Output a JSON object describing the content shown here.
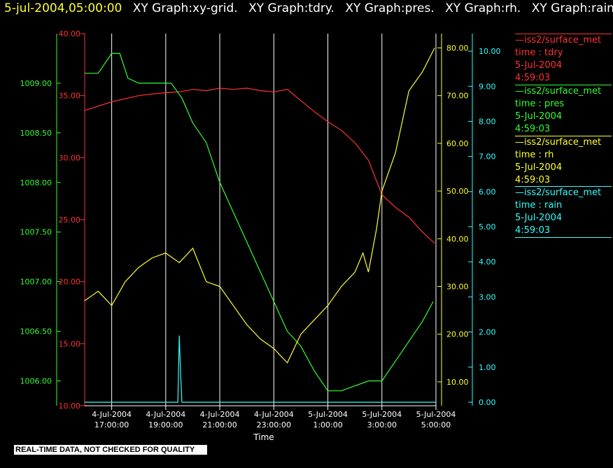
{
  "header": {
    "timestamp": "5-jul-2004,05:00:00",
    "graphs": [
      "XY Graph:xy-grid.",
      "XY Graph:tdry.",
      "XY Graph:pres.",
      "XY Graph:rh.",
      "XY Graph:rain."
    ]
  },
  "footer": {
    "quality_notice": "REAL-TIME DATA, NOT CHECKED FOR QUALITY"
  },
  "colors": {
    "tdry": "#ff3333",
    "pres": "#33ff33",
    "rh": "#ffff33",
    "rain": "#33ffff",
    "grid": "#ffffff",
    "background": "#000000"
  },
  "legend": [
    {
      "station": "iss2/surface_met",
      "variable": "time : tdry",
      "date": "5-Jul-2004",
      "time": "4:59:03",
      "color": "#ff3333"
    },
    {
      "station": "iss2/surface_met",
      "variable": "time : pres",
      "date": "5-Jul-2004",
      "time": "4:59:03",
      "color": "#33ff33"
    },
    {
      "station": "iss2/surface_met",
      "variable": "time : rh",
      "date": "5-Jul-2004",
      "time": "4:59:03",
      "color": "#ffff33"
    },
    {
      "station": "iss2/surface_met",
      "variable": "time : rain",
      "date": "5-Jul-2004",
      "time": "4:59:03",
      "color": "#33ffff"
    }
  ],
  "chart_data": {
    "type": "line",
    "xlabel": "Time",
    "x_range_hours": [
      16.0,
      29.0
    ],
    "x_ticks": [
      {
        "hour": 17,
        "date": "4-Jul-2004",
        "time": "17:00:00"
      },
      {
        "hour": 19,
        "date": "4-Jul-2004",
        "time": "19:00:00"
      },
      {
        "hour": 21,
        "date": "4-Jul-2004",
        "time": "21:00:00"
      },
      {
        "hour": 23,
        "date": "4-Jul-2004",
        "time": "23:00:00"
      },
      {
        "hour": 25,
        "date": "5-Jul-2004",
        "time": "1:00:00"
      },
      {
        "hour": 27,
        "date": "5-Jul-2004",
        "time": "3:00:00"
      },
      {
        "hour": 29,
        "date": "5-Jul-2004",
        "time": "5:00:00"
      }
    ],
    "axes": {
      "pres": {
        "range": [
          1005.75,
          1009.5
        ],
        "ticks": [
          "1006.00",
          "1006.50",
          "1007.00",
          "1007.50",
          "1008.00",
          "1008.50",
          "1009.00"
        ],
        "tick_values": [
          1006.0,
          1006.5,
          1007.0,
          1007.5,
          1008.0,
          1008.5,
          1009.0
        ]
      },
      "tdry": {
        "range": [
          10.0,
          40.0
        ],
        "ticks": [
          "10.00",
          "15.00",
          "20.00",
          "25.00",
          "30.00",
          "35.00",
          "40.00"
        ],
        "tick_values": [
          10,
          15,
          20,
          25,
          30,
          35,
          40
        ]
      },
      "rh": {
        "range": [
          5.0,
          83.0
        ],
        "ticks": [
          "10.00",
          "20.00",
          "30.00",
          "40.00",
          "50.00",
          "60.00",
          "70.00",
          "80.00"
        ],
        "tick_values": [
          10,
          20,
          30,
          40,
          50,
          60,
          70,
          80
        ]
      },
      "rain": {
        "range": [
          -0.1,
          10.5
        ],
        "ticks": [
          "0.00",
          "1.00",
          "2.00",
          "3.00",
          "4.00",
          "5.00",
          "6.00",
          "7.00",
          "8.00",
          "9.00",
          "10.00"
        ],
        "tick_values": [
          0,
          1,
          2,
          3,
          4,
          5,
          6,
          7,
          8,
          9,
          10
        ]
      }
    },
    "series": [
      {
        "key": "tdry",
        "x": [
          16.0,
          17.0,
          18.0,
          18.8,
          19.5,
          20.0,
          20.5,
          21.0,
          21.5,
          22.0,
          22.5,
          23.0,
          23.5,
          24.0,
          24.5,
          25.0,
          25.5,
          26.0,
          26.5,
          27.0,
          27.5,
          28.0,
          28.5,
          28.95
        ],
        "y": [
          33.8,
          34.5,
          35.0,
          35.2,
          35.3,
          35.5,
          35.4,
          35.6,
          35.5,
          35.6,
          35.4,
          35.3,
          35.5,
          34.6,
          33.7,
          32.9,
          32.2,
          31.2,
          29.8,
          27.0,
          26.0,
          25.2,
          24.0,
          23.1
        ]
      },
      {
        "key": "pres",
        "x": [
          16.0,
          16.5,
          17.0,
          17.3,
          17.6,
          18.0,
          18.6,
          19.2,
          19.6,
          20.0,
          20.5,
          21.0,
          21.5,
          22.0,
          22.5,
          23.0,
          23.5,
          24.0,
          24.5,
          25.0,
          25.5,
          26.0,
          26.5,
          27.0,
          27.5,
          28.0,
          28.5,
          28.9
        ],
        "y": [
          1009.1,
          1009.1,
          1009.3,
          1009.3,
          1009.05,
          1009.0,
          1009.0,
          1009.0,
          1008.85,
          1008.6,
          1008.4,
          1008.0,
          1007.7,
          1007.4,
          1007.1,
          1006.8,
          1006.5,
          1006.35,
          1006.1,
          1005.9,
          1005.9,
          1005.95,
          1006.0,
          1006.0,
          1006.2,
          1006.4,
          1006.6,
          1006.8
        ]
      },
      {
        "key": "rh",
        "x": [
          16.0,
          16.5,
          17.0,
          17.5,
          18.0,
          18.5,
          19.0,
          19.5,
          20.0,
          20.5,
          21.0,
          21.5,
          22.0,
          22.5,
          23.0,
          23.5,
          24.0,
          24.5,
          25.0,
          25.5,
          26.0,
          26.3,
          26.5,
          26.8,
          27.0,
          27.5,
          28.0,
          28.5,
          28.95
        ],
        "y": [
          27.0,
          29.0,
          26.0,
          31.0,
          34.0,
          36.0,
          37.0,
          35.0,
          38.0,
          31.0,
          30.0,
          26.0,
          22.0,
          19.0,
          17.0,
          14.0,
          20.0,
          23.0,
          26.0,
          30.0,
          33.0,
          37.0,
          33.0,
          42.0,
          50.0,
          58.0,
          71.0,
          75.0,
          80.0
        ]
      },
      {
        "key": "rain",
        "x": [
          16.0,
          19.45,
          19.5,
          19.55,
          19.6,
          29.0
        ],
        "y": [
          0.0,
          0.0,
          1.9,
          0.8,
          0.0,
          0.0
        ]
      }
    ]
  }
}
